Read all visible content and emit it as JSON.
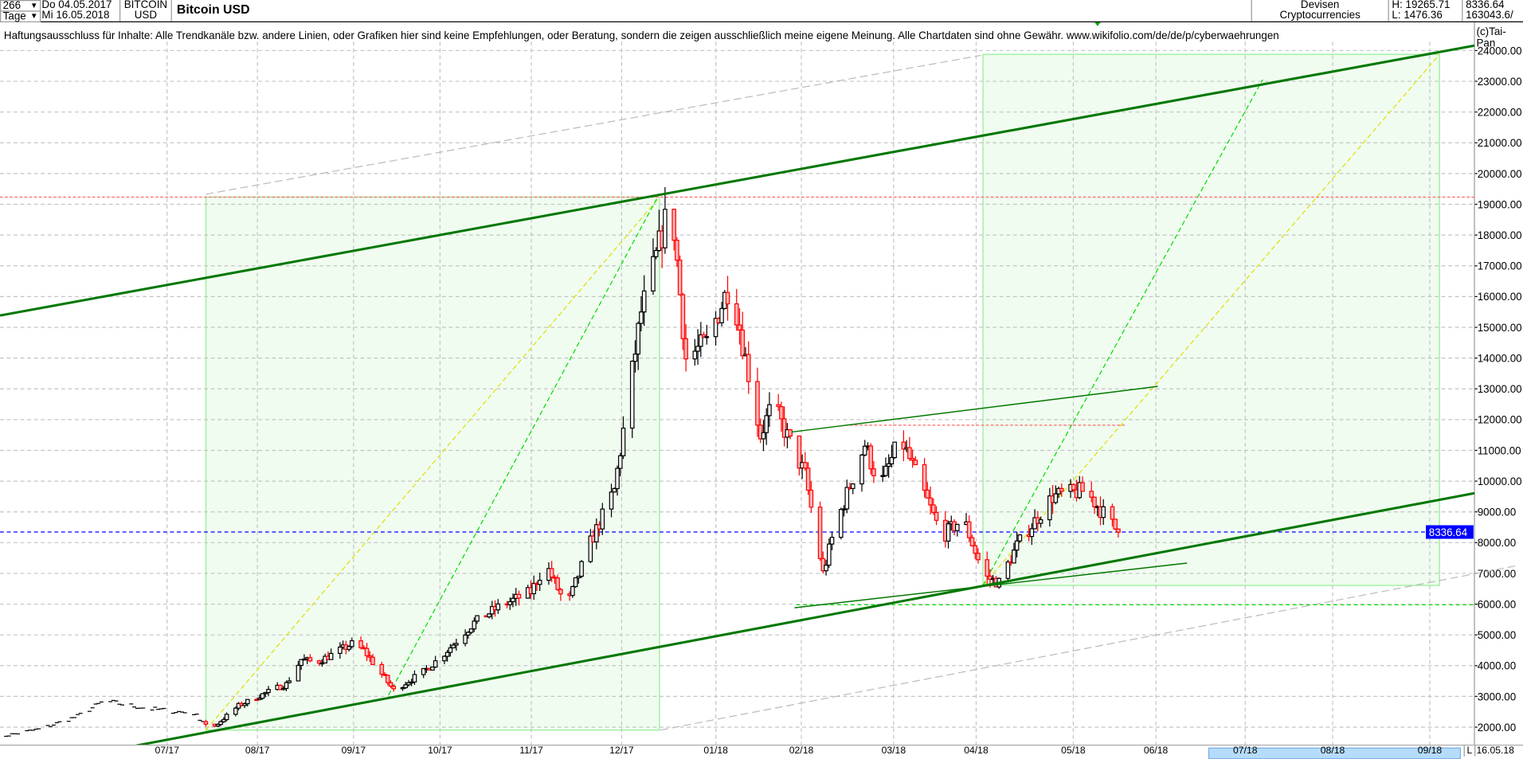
{
  "header": {
    "count": "266",
    "period": "Tage",
    "date_from": "Do 04.05.2017",
    "date_to": "Mi 16.05.2018",
    "symbol_line1": "BITCOIN",
    "symbol_line2": "USD",
    "title": "Bitcoin USD",
    "category_line1": "Devisen",
    "category_line2": "Cryptocurrencies",
    "high": "H: 19265.71",
    "low": "L: 1476.36",
    "last": "8336.64",
    "volume": "163043.6/"
  },
  "disclaimer": "Haftungsausschluss für Inhalte: Alle Trendkanäle bzw. andere Linien, oder Grafiken hier sind keine Empfehlungen, oder Beratung, sondern die zeigen ausschließlich meine eigene Meinung. Alle Chartdaten sind ohne Gewähr.  www.wikifolio.com/de/de/p/cyberwaehrungen",
  "copyright": "(c)Tai-Pan",
  "footer": {
    "l_button": "L",
    "last_date": "16.05.18"
  },
  "colors": {
    "up_body": "#ffffff",
    "down_body": "#ffb4b4",
    "down_border": "#ff0000",
    "channel": "#007700",
    "box_fill": "#f0fcf0",
    "box_border": "#90ee90",
    "last_price_line": "#0000ff",
    "high_line": "#ff6666",
    "range_highlight": "#b6dcfc"
  },
  "chart_data": {
    "type": "candlestick",
    "title": "Bitcoin USD",
    "last_price_label": "8336.64",
    "ylim": [
      1500,
      24600
    ],
    "yticks": [
      "24000.00",
      "23000.00",
      "22000.00",
      "21000.00",
      "20000.00",
      "19000.00",
      "18000.00",
      "17000.00",
      "16000.00",
      "15000.00",
      "14000.00",
      "13000.00",
      "12000.00",
      "11000.00",
      "10000.00",
      "9000.00",
      "8000.00",
      "7000.00",
      "6000.00",
      "5000.00",
      "4000.00",
      "3000.00",
      "2000.00"
    ],
    "xticks": [
      "07/17",
      "08/17",
      "09/17",
      "10/17",
      "11/17",
      "12/17",
      "01/18",
      "02/18",
      "03/18",
      "04/18",
      "05/18",
      "06/18",
      "07/18",
      "08/18",
      "09/18"
    ],
    "grid": true,
    "close_keypoints": [
      [
        "2017-05-04",
        1650
      ],
      [
        "2017-05-20",
        1950
      ],
      [
        "2017-06-01",
        2350
      ],
      [
        "2017-06-10",
        2850
      ],
      [
        "2017-06-25",
        2600
      ],
      [
        "2017-07-10",
        2450
      ],
      [
        "2017-07-16",
        1950
      ],
      [
        "2017-07-25",
        2700
      ],
      [
        "2017-08-05",
        3200
      ],
      [
        "2017-08-10",
        3400
      ],
      [
        "2017-08-15",
        4200
      ],
      [
        "2017-08-20",
        4100
      ],
      [
        "2017-09-01",
        4700
      ],
      [
        "2017-09-05",
        4500
      ],
      [
        "2017-09-15",
        3200
      ],
      [
        "2017-09-25",
        3800
      ],
      [
        "2017-10-01",
        4300
      ],
      [
        "2017-10-12",
        5400
      ],
      [
        "2017-10-20",
        5900
      ],
      [
        "2017-10-31",
        6400
      ],
      [
        "2017-11-05",
        7300
      ],
      [
        "2017-11-12",
        5900
      ],
      [
        "2017-11-20",
        8000
      ],
      [
        "2017-11-28",
        9700
      ],
      [
        "2017-12-07",
        15500
      ],
      [
        "2017-12-10",
        16500
      ],
      [
        "2017-12-17",
        19200
      ],
      [
        "2017-12-22",
        14000
      ],
      [
        "2017-12-29",
        14500
      ],
      [
        "2018-01-06",
        16500
      ],
      [
        "2018-01-16",
        11500
      ],
      [
        "2018-01-20",
        12500
      ],
      [
        "2018-01-31",
        10200
      ],
      [
        "2018-02-06",
        7000
      ],
      [
        "2018-02-10",
        8500
      ],
      [
        "2018-02-20",
        11200
      ],
      [
        "2018-02-25",
        9800
      ],
      [
        "2018-03-04",
        11400
      ],
      [
        "2018-03-18",
        8200
      ],
      [
        "2018-03-25",
        8800
      ],
      [
        "2018-04-01",
        6900
      ],
      [
        "2018-04-06",
        6700
      ],
      [
        "2018-04-12",
        7900
      ],
      [
        "2018-04-24",
        9500
      ],
      [
        "2018-05-05",
        9700
      ],
      [
        "2018-05-16",
        8336.64
      ]
    ]
  }
}
